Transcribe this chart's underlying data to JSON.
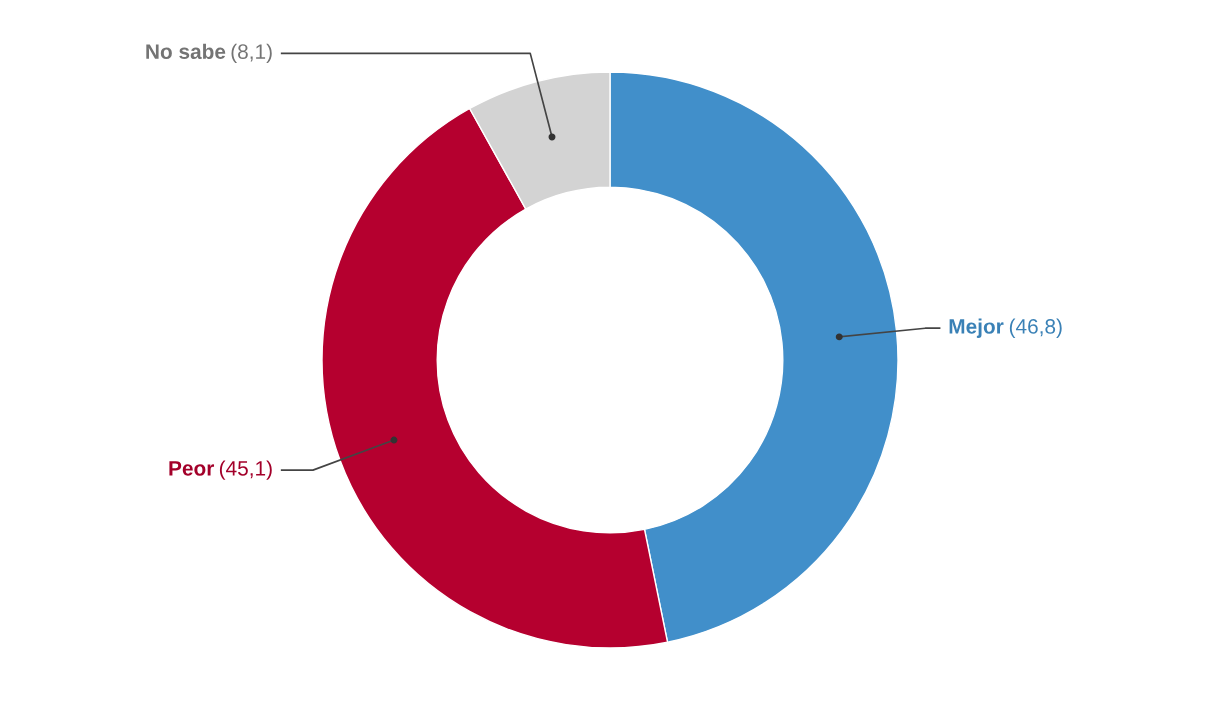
{
  "chart_data": {
    "type": "donut",
    "categories": [
      "Mejor",
      "Peor",
      "No sabe"
    ],
    "values": [
      46.8,
      45.1,
      8.1
    ],
    "colors": [
      "#418fca",
      "#b5002f",
      "#d3d3d3"
    ],
    "value_labels": [
      "(46,8)",
      "(45,1)",
      "(8,1)"
    ]
  }
}
